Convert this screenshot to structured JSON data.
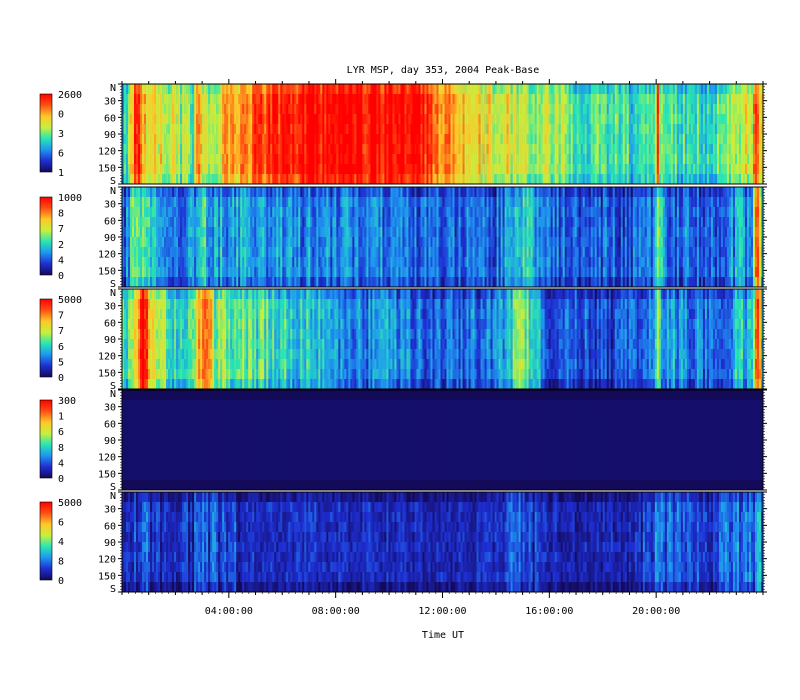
{
  "chart_data": {
    "type": "heatmap",
    "title": "LYR MSP, day 353, 2004 Peak-Base",
    "xlabel": "Time UT",
    "x_unit": "hours UT",
    "xlim": [
      0,
      24
    ],
    "x_tick_labels": [
      "04:00:00",
      "08:00:00",
      "12:00:00",
      "16:00:00",
      "20:00:00"
    ],
    "x_tick_values": [
      4,
      8,
      12,
      16,
      20
    ],
    "y_unit": "zenith angle, N to S (degrees)",
    "ylim": [
      0,
      180
    ],
    "y_tick_labels": [
      "N",
      "30",
      "60",
      "90",
      "120",
      "150",
      "S"
    ],
    "y_tick_values": [
      0,
      30,
      60,
      90,
      120,
      150,
      180
    ],
    "colormap": [
      "#140a5a",
      "#1e2ed2",
      "#1e96f0",
      "#28e6b4",
      "#c8f03c",
      "#ffc828",
      "#ff5014",
      "#ff0000"
    ],
    "panels": [
      {
        "colorbar_labels": [
          "2600",
          "0",
          "3",
          "6",
          "1"
        ],
        "level_by_hour": [
          0.38,
          0.72,
          0.55,
          0.5,
          0.74,
          0.86,
          0.93,
          0.97,
          0.99,
          1.0,
          1.0,
          0.99,
          0.78,
          0.7,
          0.62,
          0.6,
          0.55,
          0.48,
          0.45,
          0.42,
          0.5,
          0.43,
          0.4,
          0.6
        ],
        "events": [
          {
            "x": 0.55,
            "w": 0.3,
            "v": 0.96
          },
          {
            "x": 2.9,
            "w": 0.2,
            "v": 0.94
          },
          {
            "x": 20.05,
            "w": 0.1,
            "v": 0.9
          },
          {
            "x": 23.75,
            "w": 0.15,
            "v": 0.95
          }
        ]
      },
      {
        "colorbar_labels": [
          "1000",
          "8",
          "7",
          "2",
          "4",
          "0"
        ],
        "level_by_hour": [
          0.2,
          0.42,
          0.22,
          0.3,
          0.32,
          0.3,
          0.28,
          0.27,
          0.26,
          0.26,
          0.25,
          0.22,
          0.2,
          0.2,
          0.22,
          0.38,
          0.22,
          0.2,
          0.2,
          0.2,
          0.28,
          0.24,
          0.2,
          0.3
        ],
        "events": [
          {
            "x": 0.6,
            "w": 0.35,
            "v": 0.55
          },
          {
            "x": 3.0,
            "w": 0.3,
            "v": 0.45
          },
          {
            "x": 15.2,
            "w": 0.4,
            "v": 0.45
          },
          {
            "x": 20.1,
            "w": 0.12,
            "v": 0.6
          },
          {
            "x": 23.8,
            "w": 0.15,
            "v": 0.95
          }
        ]
      },
      {
        "colorbar_labels": [
          "5000",
          "7",
          "7",
          "6",
          "5",
          "0"
        ],
        "level_by_hour": [
          0.4,
          0.75,
          0.38,
          0.55,
          0.5,
          0.45,
          0.42,
          0.4,
          0.3,
          0.25,
          0.28,
          0.22,
          0.2,
          0.22,
          0.25,
          0.5,
          0.22,
          0.2,
          0.18,
          0.18,
          0.32,
          0.28,
          0.2,
          0.35
        ],
        "events": [
          {
            "x": 0.8,
            "w": 0.4,
            "v": 0.96
          },
          {
            "x": 3.1,
            "w": 0.3,
            "v": 0.95
          },
          {
            "x": 15.2,
            "w": 0.35,
            "v": 0.5
          },
          {
            "x": 20.05,
            "w": 0.1,
            "v": 0.6
          },
          {
            "x": 23.8,
            "w": 0.15,
            "v": 0.97
          }
        ]
      },
      {
        "colorbar_labels": [
          "300",
          "1",
          "6",
          "8",
          "4",
          "0"
        ],
        "level_by_hour": [
          0.02,
          0.02,
          0.02,
          0.02,
          0.02,
          0.02,
          0.02,
          0.02,
          0.02,
          0.02,
          0.02,
          0.02,
          0.02,
          0.02,
          0.02,
          0.02,
          0.02,
          0.02,
          0.02,
          0.02,
          0.02,
          0.02,
          0.02,
          0.02
        ],
        "events": []
      },
      {
        "colorbar_labels": [
          "5000",
          "6",
          "4",
          "8",
          "0"
        ],
        "level_by_hour": [
          0.14,
          0.18,
          0.12,
          0.2,
          0.16,
          0.14,
          0.13,
          0.13,
          0.12,
          0.12,
          0.12,
          0.12,
          0.11,
          0.12,
          0.12,
          0.2,
          0.11,
          0.1,
          0.1,
          0.1,
          0.22,
          0.18,
          0.13,
          0.25
        ],
        "events": [
          {
            "x": 3.1,
            "w": 0.15,
            "v": 0.3
          },
          {
            "x": 20.05,
            "w": 0.1,
            "v": 0.3
          },
          {
            "x": 23.8,
            "w": 0.12,
            "v": 0.45
          }
        ]
      }
    ]
  }
}
